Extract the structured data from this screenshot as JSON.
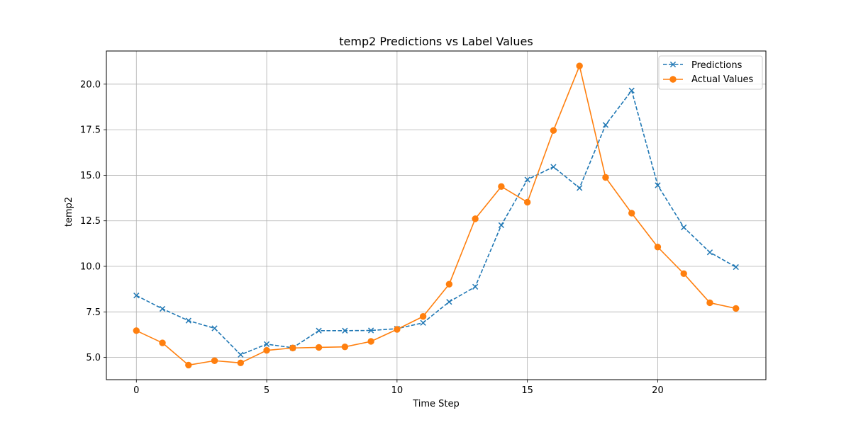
{
  "colors": {
    "predictions": "#1f77b4",
    "actual": "#ff7f0e",
    "grid": "#b0b0b0",
    "axes": "#000000"
  },
  "chart_data": {
    "type": "line",
    "title": "temp2 Predictions vs Label Values",
    "xlabel": "Time Step",
    "ylabel": "temp2",
    "xlim": [
      -1.15,
      24.15
    ],
    "ylim": [
      3.78,
      21.82
    ],
    "grid": true,
    "legend_position": "top-right",
    "xticks": [
      0,
      5,
      10,
      15,
      20
    ],
    "xtick_labels": [
      "0",
      "5",
      "10",
      "15",
      "20"
    ],
    "yticks": [
      5.0,
      7.5,
      10.0,
      12.5,
      15.0,
      17.5,
      20.0
    ],
    "ytick_labels": [
      "5.0",
      "7.5",
      "10.0",
      "12.5",
      "15.0",
      "17.5",
      "20.0"
    ],
    "x": [
      0,
      1,
      2,
      3,
      4,
      5,
      6,
      7,
      8,
      9,
      10,
      11,
      12,
      13,
      14,
      15,
      16,
      17,
      18,
      19,
      20,
      21,
      22,
      23
    ],
    "series": [
      {
        "name": "Predictions",
        "style": "dashed",
        "marker": "x",
        "color": "#1f77b4",
        "values": [
          8.4,
          7.67,
          7.02,
          6.6,
          5.15,
          5.73,
          5.53,
          6.47,
          6.47,
          6.48,
          6.58,
          6.9,
          8.05,
          8.88,
          12.26,
          14.76,
          15.46,
          14.3,
          17.76,
          19.65,
          14.45,
          12.14,
          10.77,
          9.96
        ]
      },
      {
        "name": "Actual Values",
        "style": "solid",
        "marker": "circle",
        "color": "#ff7f0e",
        "values": [
          6.47,
          5.8,
          4.58,
          4.82,
          4.7,
          5.39,
          5.52,
          5.55,
          5.58,
          5.88,
          6.54,
          7.25,
          9.02,
          12.61,
          14.38,
          13.52,
          17.46,
          21.0,
          14.88,
          12.92,
          11.06,
          9.6,
          8.0,
          7.69
        ]
      }
    ]
  }
}
